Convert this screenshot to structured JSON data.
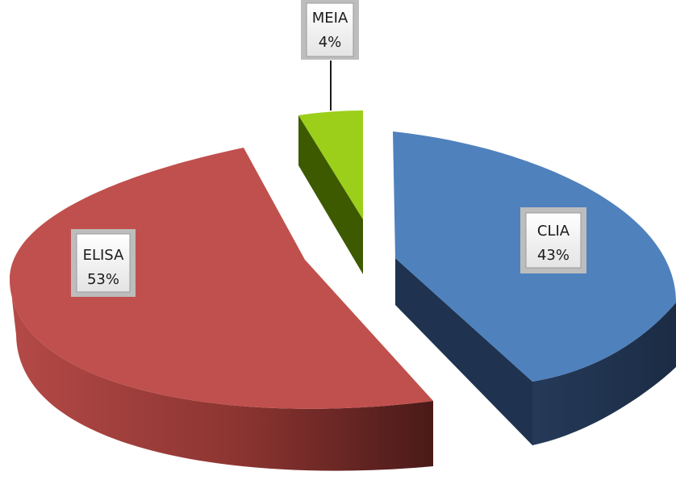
{
  "chart_data": {
    "type": "pie",
    "style": "3d-exploded",
    "categories": [
      "CLIA",
      "ELISA",
      "MEIA"
    ],
    "values": [
      43,
      53,
      4
    ],
    "data_labels": [
      {
        "name": "CLIA",
        "value": "43%"
      },
      {
        "name": "ELISA",
        "value": "53%"
      },
      {
        "name": "MEIA",
        "value": "4%"
      }
    ],
    "colors": {
      "CLIA": {
        "top": "#4f81bd",
        "side": "#1f3350"
      },
      "ELISA": {
        "top": "#c0504d",
        "side": "#7a2c2a"
      },
      "MEIA": {
        "top": "#9bcf1a",
        "side": "#3d5a00"
      }
    }
  }
}
